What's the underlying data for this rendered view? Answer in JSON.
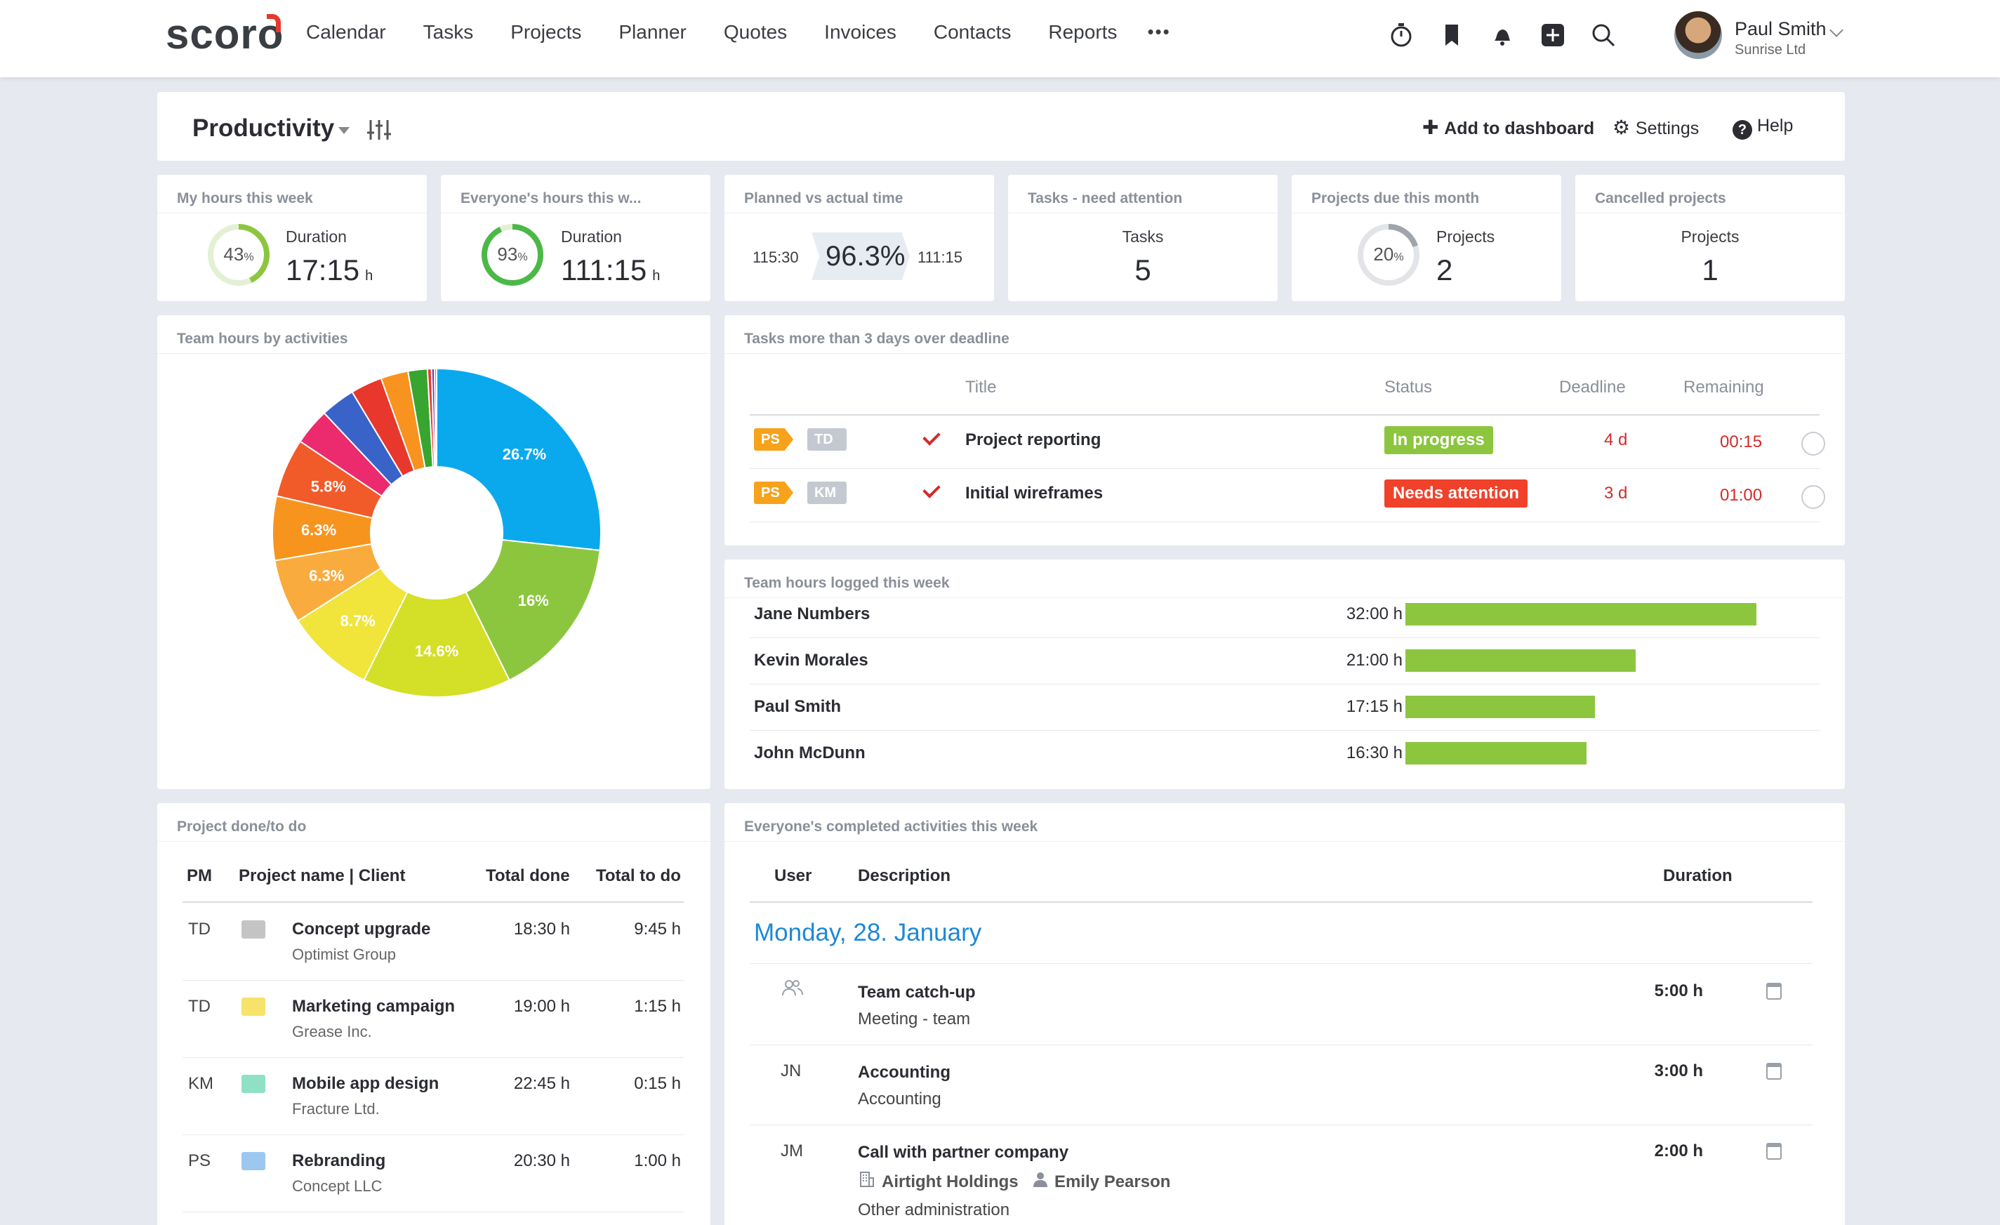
{
  "app": {
    "logo": "scoro"
  },
  "nav": [
    "Calendar",
    "Tasks",
    "Projects",
    "Planner",
    "Quotes",
    "Invoices",
    "Contacts",
    "Reports"
  ],
  "nav_more": "•••",
  "top_icons": [
    "stopwatch-icon",
    "bookmark-icon",
    "bell-icon",
    "add-icon",
    "search-icon"
  ],
  "user": {
    "name": "Paul Smith",
    "company": "Sunrise Ltd"
  },
  "page": {
    "title": "Productivity",
    "add_dashboard": "Add to dashboard",
    "settings": "Settings",
    "help": "Help"
  },
  "kpis": [
    {
      "title": "My hours this week",
      "percent": "43",
      "percent_value": 43,
      "label": "Duration",
      "value": "17:15",
      "unit": "h"
    },
    {
      "title": "Everyone's hours this w...",
      "percent": "93",
      "percent_value": 93,
      "label": "Duration",
      "value": "111:15",
      "unit": "h"
    },
    {
      "title": "Planned vs actual time",
      "planned": "115:30",
      "pct": "96.3%",
      "actual": "111:15"
    },
    {
      "title": "Tasks - need attention",
      "label": "Tasks",
      "value": "5"
    },
    {
      "title": "Projects due this month",
      "percent": "20",
      "percent_value": 20,
      "label": "Projects",
      "value": "2"
    },
    {
      "title": "Cancelled projects",
      "label": "Projects",
      "value": "1"
    }
  ],
  "colors": {
    "accent": "#1e88d6",
    "green": "#8cc63f",
    "red": "#e8372c",
    "orange": "#f7a21b"
  },
  "pie": {
    "title": "Team hours by activities",
    "chart_data": {
      "type": "pie",
      "slices": [
        {
          "value": 26.7,
          "label": "26.7%",
          "color": "#0aa9ee"
        },
        {
          "value": 16.0,
          "label": "16%",
          "color": "#8cc63f"
        },
        {
          "value": 14.6,
          "label": "14.6%",
          "color": "#d4df27"
        },
        {
          "value": 8.7,
          "label": "8.7%",
          "color": "#f1e43a"
        },
        {
          "value": 6.3,
          "label": "6.3%",
          "color": "#f9ac3d"
        },
        {
          "value": 6.3,
          "label": "6.3%",
          "color": "#f7941d"
        },
        {
          "value": 5.8,
          "label": "5.8%",
          "color": "#f15a29"
        },
        {
          "value": 3.6,
          "label": "",
          "color": "#ec2a6e"
        },
        {
          "value": 3.4,
          "label": "",
          "color": "#3a63c9"
        },
        {
          "value": 3.1,
          "label": "",
          "color": "#e8372c"
        },
        {
          "value": 2.7,
          "label": "",
          "color": "#f7931e"
        },
        {
          "value": 1.9,
          "label": "",
          "color": "#37a52f"
        },
        {
          "value": 0.4,
          "label": "",
          "color": "#e8372c"
        },
        {
          "value": 0.3,
          "label": "",
          "color": "#6f3ab8"
        },
        {
          "value": 0.2,
          "label": "",
          "color": "#2a93c9"
        }
      ]
    }
  },
  "overdue": {
    "title": "Tasks more than 3 days over deadline",
    "headers": {
      "title": "Title",
      "status": "Status",
      "deadline": "Deadline",
      "remaining": "Remaining"
    },
    "rows": [
      {
        "tag1": "PS",
        "tag2": "TD",
        "title": "Project reporting",
        "status": "In progress",
        "status_color": "#8cc63f",
        "deadline": "4 d",
        "remaining": "00:15"
      },
      {
        "tag1": "PS",
        "tag2": "KM",
        "title": "Initial wireframes",
        "status": "Needs attention",
        "status_color": "#f0412b",
        "deadline": "3 d",
        "remaining": "01:00"
      }
    ]
  },
  "logged": {
    "title": "Team hours logged this week",
    "chart_data": {
      "type": "bar",
      "categories": [
        "Jane Numbers",
        "Kevin Morales",
        "Paul Smith",
        "John McDunn"
      ],
      "values": [
        32.0,
        21.0,
        17.25,
        16.5
      ],
      "labels": [
        "32:00 h",
        "21:00 h",
        "17:15 h",
        "16:30 h"
      ]
    }
  },
  "projects": {
    "title": "Project done/to do",
    "headers": {
      "pm": "PM",
      "name": "Project name | Client",
      "done": "Total done",
      "todo": "Total to do"
    },
    "rows": [
      {
        "pm": "TD",
        "color": "#c4c4c4",
        "name": "Concept upgrade",
        "client": "Optimist Group",
        "done": "18:30 h",
        "todo": "9:45 h"
      },
      {
        "pm": "TD",
        "color": "#f7e26b",
        "name": "Marketing campaign",
        "client": "Grease Inc.",
        "done": "19:00 h",
        "todo": "1:15 h"
      },
      {
        "pm": "KM",
        "color": "#8fe0c4",
        "name": "Mobile app design",
        "client": "Fracture Ltd.",
        "done": "22:45 h",
        "todo": "0:15 h"
      },
      {
        "pm": "PS",
        "color": "#9cc8ef",
        "name": "Rebranding",
        "client": "Concept LLC",
        "done": "20:30 h",
        "todo": "1:00 h"
      }
    ]
  },
  "activities": {
    "title": "Everyone's completed activities this week",
    "headers": {
      "user": "User",
      "desc": "Description",
      "duration": "Duration"
    },
    "date": "Monday, 28. January",
    "rows": [
      {
        "user": "",
        "title": "Team catch-up",
        "sub": "Meeting - team",
        "duration": "5:00 h"
      },
      {
        "user": "JN",
        "title": "Accounting",
        "sub": "Accounting",
        "duration": "3:00 h"
      },
      {
        "user": "JM",
        "title": "Call with partner company",
        "company": "Airtight Holdings",
        "person": "Emily Pearson",
        "sub": "Other administration",
        "duration": "2:00 h"
      }
    ]
  }
}
